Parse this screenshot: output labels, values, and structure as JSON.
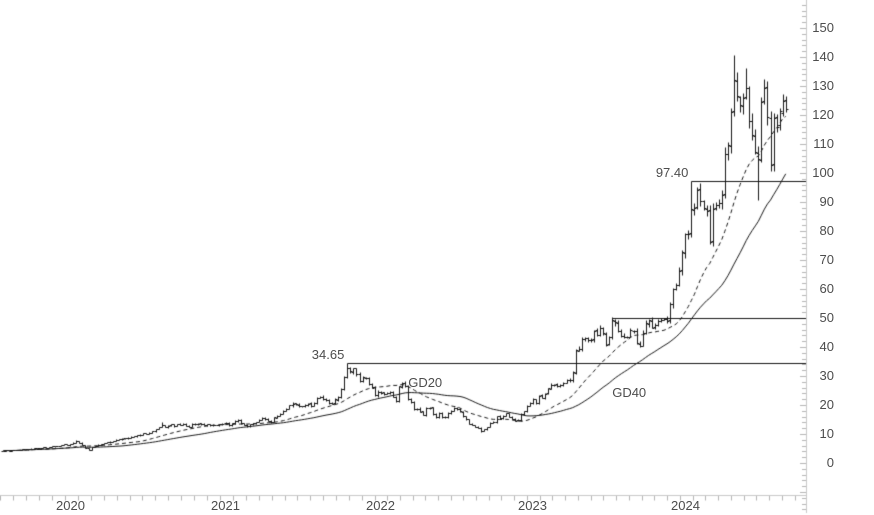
{
  "chart_data": {
    "type": "ohlc-bar",
    "title": "",
    "legend_position": "none",
    "grid": false,
    "background": "#ffffff",
    "x_axis": {
      "ticks": [
        "2020",
        "2021",
        "2022",
        "2023",
        "2024"
      ],
      "minor_tick": "monthly",
      "position": "bottom"
    },
    "y_axis": {
      "ticks": [
        0,
        10,
        20,
        30,
        40,
        50,
        60,
        70,
        80,
        90,
        100,
        110,
        120,
        130,
        140,
        150
      ],
      "major_step": 10,
      "minor_step": 2,
      "visible_range": [
        -11,
        160
      ],
      "position": "right"
    },
    "series": {
      "frequency": "weekly",
      "close": [
        4.2,
        4.32,
        4.28,
        4.45,
        4.42,
        4.58,
        4.72,
        4.68,
        4.88,
        5.0,
        5.1,
        5.05,
        5.22,
        5.35,
        5.3,
        5.52,
        5.7,
        5.88,
        5.95,
        6.18,
        6.4,
        6.12,
        6.55,
        7.0,
        7.52,
        7.05,
        6.1,
        5.2,
        4.65,
        5.45,
        5.9,
        6.3,
        6.62,
        7.0,
        7.1,
        7.3,
        7.62,
        8.0,
        8.2,
        8.42,
        8.55,
        8.72,
        9.0,
        9.2,
        9.5,
        9.8,
        10.2,
        10.05,
        10.5,
        11.0,
        11.6,
        12.4,
        13.05,
        12.5,
        12.9,
        13.3,
        12.75,
        13.5,
        13.2,
        13.6,
        12.9,
        12.5,
        13.4,
        13.3,
        13.6,
        13.4,
        13.1,
        13.3,
        13.0,
        13.2,
        13.05,
        13.3,
        13.6,
        13.9,
        13.0,
        13.7,
        14.5,
        14.8,
        13.8,
        13.2,
        12.8,
        13.4,
        13.7,
        14.1,
        15.0,
        15.5,
        15.2,
        14.6,
        14.2,
        15.7,
        16.3,
        17.0,
        18.0,
        18.7,
        19.9,
        20.5,
        20.2,
        19.5,
        19.6,
        20.0,
        20.5,
        19.7,
        20.8,
        22.4,
        22.9,
        22.1,
        21.8,
        20.7,
        20.5,
        21.9,
        22.8,
        25.5,
        29.7,
        32.7,
        31.6,
        32.6,
        30.6,
        28.3,
        29.5,
        29.4,
        27.3,
        26.0,
        23.4,
        24.5,
        24.3,
        23.9,
        24.1,
        24.4,
        22.9,
        21.3,
        26.4,
        27.6,
        26.7,
        22.0,
        21.0,
        18.6,
        18.7,
        17.7,
        16.6,
        18.8,
        19.1,
        16.9,
        15.8,
        17.1,
        15.8,
        15.7,
        17.3,
        18.1,
        19.0,
        18.7,
        17.8,
        16.2,
        15.1,
        13.6,
        13.1,
        12.5,
        12.1,
        11.2,
        11.6,
        12.4,
        13.8,
        14.1,
        16.2,
        15.4,
        16.3,
        17.1,
        16.0,
        15.3,
        14.6,
        14.8,
        16.9,
        17.8,
        19.6,
        20.8,
        21.9,
        20.7,
        23.2,
        22.5,
        23.9,
        25.7,
        27.0,
        27.0,
        26.4,
        26.8,
        27.7,
        28.6,
        28.5,
        31.3,
        38.9,
        39.3,
        42.7,
        43.0,
        42.3,
        42.5,
        45.5,
        44.3,
        46.7,
        44.7,
        40.8,
        43.3,
        49.3,
        48.5,
        45.5,
        43.9,
        43.5,
        43.4,
        45.7,
        45.4,
        41.3,
        40.5,
        45.0,
        48.3,
        49.3,
        46.7,
        47.5,
        48.9,
        49.3,
        49.5,
        49.1,
        54.7,
        59.9,
        61.5,
        66.2,
        72.6,
        78.8,
        79.1,
        87.5,
        87.9,
        94.2,
        90.4,
        88.0,
        87.0,
        76.2,
        87.7,
        88.8,
        89.8,
        92.5,
        106.5,
        109.6,
        120.9,
        131.9,
        126.6,
        123.5,
        125.8,
        129.2,
        117.9,
        113.1,
        107.2,
        104.8,
        124.6,
        129.4,
        119.4,
        102.8,
        119.1,
        116.0,
        121.4,
        124.9,
        122.2
      ],
      "overrides": [
        {
          "index": 24,
          "high": 7.87
        },
        {
          "index": 28,
          "low": 4.5
        },
        {
          "index": 52,
          "high": 14.1
        },
        {
          "index": 113,
          "high": 34.65
        },
        {
          "index": 157,
          "low": 10.81
        },
        {
          "index": 200,
          "high": 50.2
        },
        {
          "index": 226,
          "high": 97.4
        },
        {
          "index": 232,
          "low": 75.6
        },
        {
          "index": 240,
          "high": 140.76
        },
        {
          "index": 244,
          "high": 136.15
        },
        {
          "index": 248,
          "low": 90.7
        }
      ]
    },
    "moving_averages": [
      {
        "name": "GD20",
        "window": 20,
        "style": "dashed",
        "label": "GD20",
        "label_pos": {
          "index": 133,
          "value": 27.5
        }
      },
      {
        "name": "GD40",
        "window": 40,
        "style": "solid",
        "label": "GD40",
        "label_pos": {
          "index": 200,
          "value": 24.3
        }
      }
    ],
    "hlines": [
      {
        "value": 34.65,
        "label": "34.65",
        "start_index": 113
      },
      {
        "value": 50.0,
        "label": "",
        "start_index": 200
      },
      {
        "value": 97.4,
        "label": "97.40",
        "start_index": 226
      }
    ],
    "colors": {
      "bar": "#161616",
      "ma": "#161616",
      "hline": "#161616",
      "axis": "#c9c9c9",
      "tick": "#b5b5b5",
      "label": "#4d4d4d",
      "background": "#ffffff"
    }
  }
}
